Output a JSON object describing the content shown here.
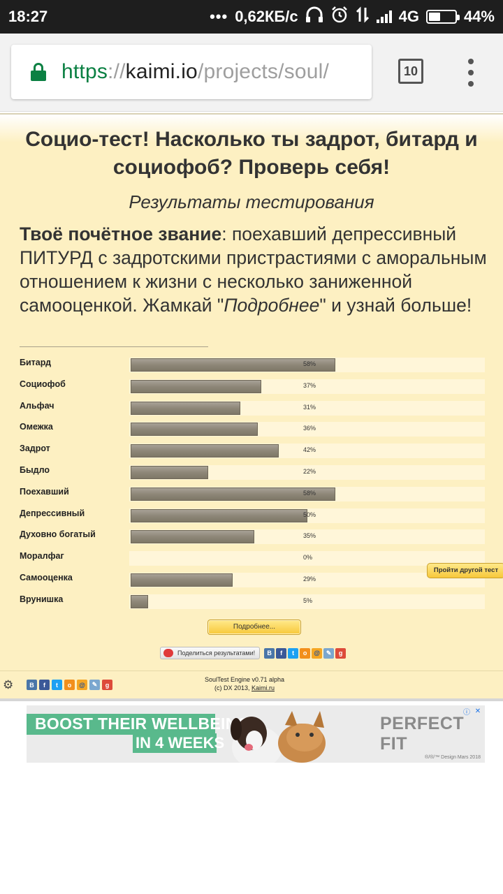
{
  "status_bar": {
    "time": "18:27",
    "network_speed": "0,62КБ/с",
    "network_type": "4G",
    "battery": "44%",
    "battery_level": 0.44
  },
  "browser": {
    "url_scheme": "https",
    "url_separator": "://",
    "url_host": "kaimi.io",
    "url_path": "/projects/soul/",
    "tab_count": "10"
  },
  "page": {
    "title": "Социо-тест! Насколько ты задрот, битард и социофоб? Проверь себя!",
    "subtitle": "Результаты тестирования",
    "verdict_label": "Твоё почётное звание",
    "verdict_text": ": поехавший депрессивный ПИТУРД с задротскими пристрастиями с аморальным отношением к жизни с несколько заниженной самооценкой. Жамкай \"",
    "verdict_more_word": "Подробнее",
    "verdict_tail": "\" и узнай больше!"
  },
  "chart_data": {
    "type": "bar",
    "orientation": "horizontal",
    "categories": [
      "Битард",
      "Социофоб",
      "Альфач",
      "Омежка",
      "Задрот",
      "Быдло",
      "Поехавший",
      "Депрессивный",
      "Духовно богатый",
      "Моралфаг",
      "Самооценка",
      "Врунишка"
    ],
    "values": [
      58,
      37,
      31,
      36,
      42,
      22,
      58,
      50,
      35,
      0,
      29,
      5
    ],
    "value_labels": [
      "58%",
      "37%",
      "31%",
      "36%",
      "42%",
      "22%",
      "58%",
      "50%",
      "35%",
      "0%",
      "29%",
      "5%"
    ],
    "xlim": [
      0,
      100
    ],
    "unit": "%"
  },
  "buttons": {
    "more": "Подробнее...",
    "share": "Поделиться результатами!",
    "other_test": "Пройти другой тест"
  },
  "social_icons": [
    "vk-icon",
    "facebook-icon",
    "twitter-icon",
    "odnoklassniki-icon",
    "mailru-icon",
    "livejournal-icon",
    "googleplus-icon"
  ],
  "footer": {
    "engine_line": "SoulTest Engine v0.71 alpha",
    "copyright_prefix": "(c) DX 2013, ",
    "copyright_link": "Kaimi.ru"
  },
  "ad": {
    "line1": "BOOST THEIR WELLBEING",
    "line2": "IN 4 WEEKS",
    "brand": "PERFECT FIT",
    "fine_print": "®/®/™ Design Mars 2018",
    "accent_color": "#59b98c"
  }
}
